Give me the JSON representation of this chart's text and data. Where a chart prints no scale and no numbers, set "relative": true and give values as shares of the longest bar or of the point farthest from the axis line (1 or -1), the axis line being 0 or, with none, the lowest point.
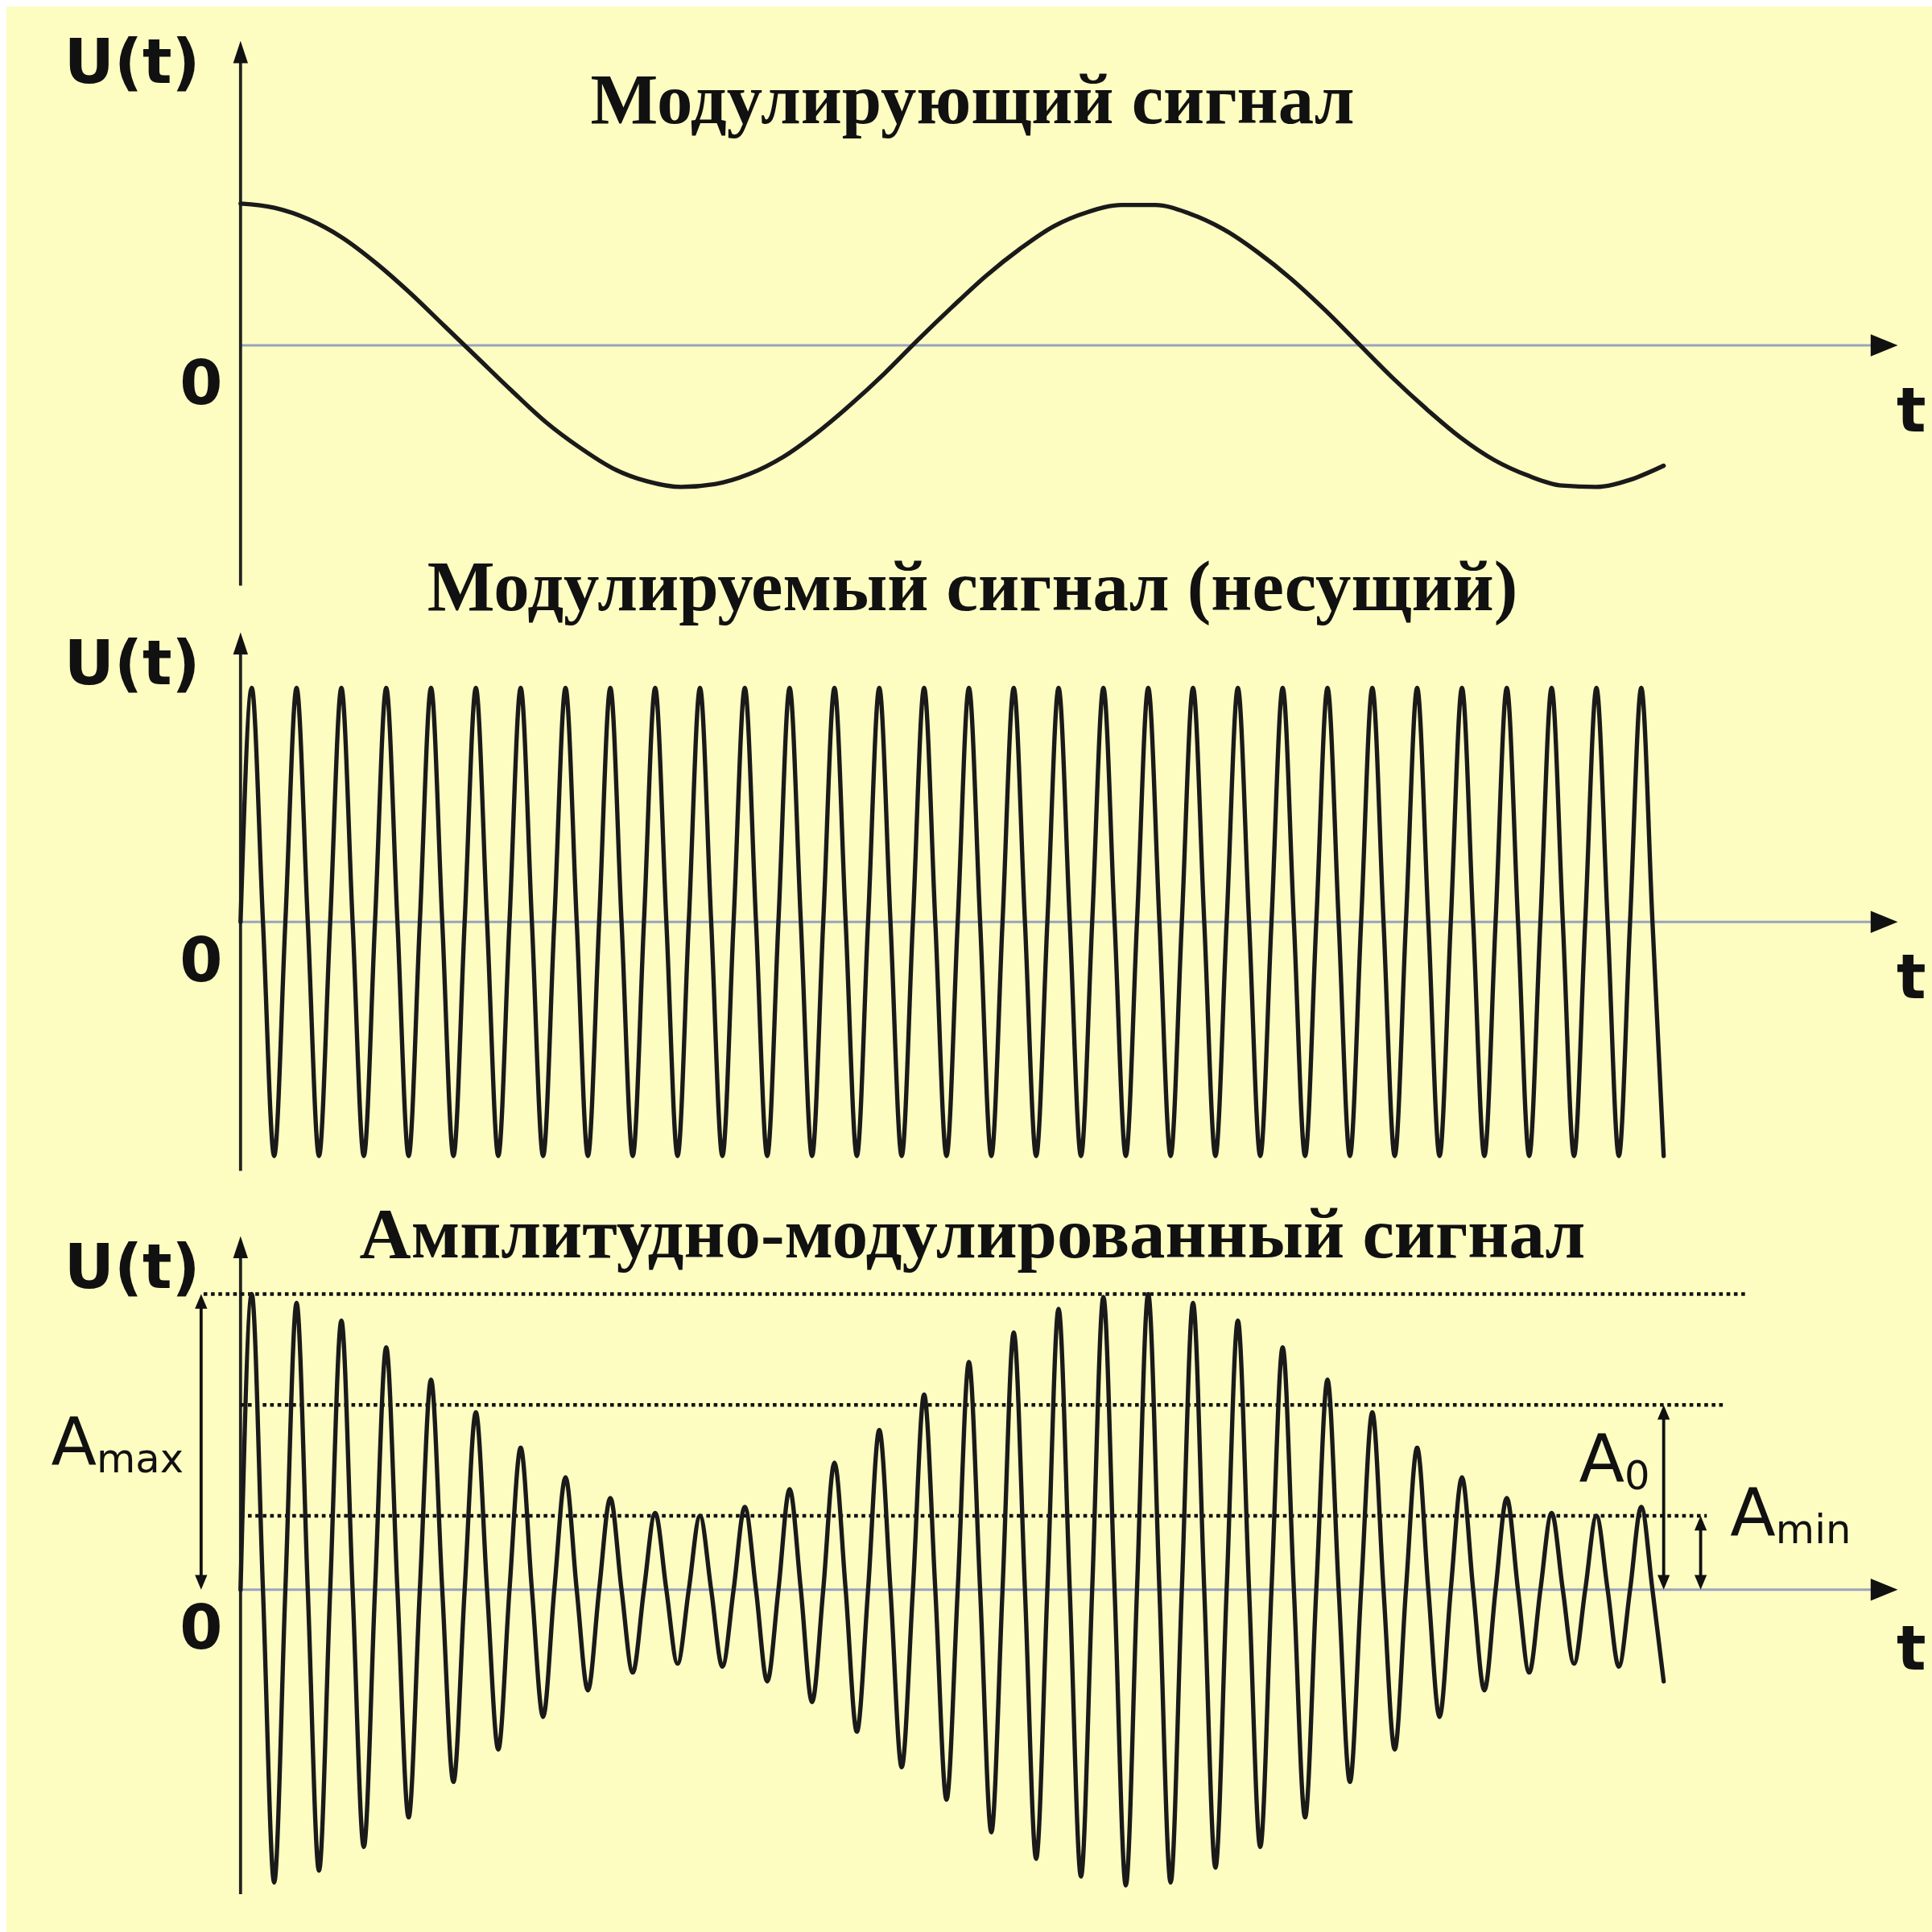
{
  "chart_data": [
    {
      "type": "line",
      "title": "Модулирующий сигнал",
      "xlabel": "t",
      "ylabel": "U(t)",
      "relative": true,
      "annotations": [
        "0"
      ],
      "categories": [
        null,
        null,
        null,
        null,
        null,
        null,
        null,
        null,
        null,
        null,
        null,
        null,
        null,
        null,
        null,
        null,
        null,
        null,
        null,
        null,
        null,
        null,
        null,
        null,
        null,
        null,
        null,
        null,
        null,
        null,
        null,
        null,
        null,
        null,
        null,
        null,
        null,
        null,
        null,
        null,
        null,
        null,
        null
      ],
      "series": [
        {
          "color": "#1a1a1a",
          "values": [
            1,
            0.97,
            0.89,
            0.76,
            0.58,
            0.37,
            0.14,
            -0.09,
            -0.32,
            -0.54,
            -0.72,
            -0.87,
            -0.96,
            -1,
            -0.98,
            -0.91,
            -0.79,
            -0.62,
            -0.42,
            -0.2,
            0.04,
            0.27,
            0.49,
            0.68,
            0.84,
            0.94,
            0.99,
            0.99,
            0.93,
            0.82,
            0.66,
            0.47,
            0.25,
            0.01,
            -0.23,
            -0.45,
            -0.65,
            -0.81,
            -0.92,
            -0.99,
            -1,
            -0.95,
            -0.85
          ]
        }
      ]
    },
    {
      "type": "line",
      "title": "Модулируемый сигнал (несущий)",
      "xlabel": "t",
      "ylabel": "U(t)",
      "relative": true,
      "annotations": [
        "0"
      ],
      "categories": [
        null,
        null,
        null,
        null,
        null,
        null,
        null,
        null,
        null,
        null,
        null,
        null,
        null,
        null,
        null,
        null,
        null,
        null,
        null,
        null,
        null,
        null,
        null,
        null,
        null,
        null,
        null,
        null,
        null,
        null,
        null,
        null,
        null,
        null,
        null,
        null,
        null,
        null,
        null,
        null,
        null,
        null,
        null,
        null,
        null,
        null,
        null,
        null,
        null,
        null,
        null,
        null,
        null,
        null,
        null,
        null,
        null,
        null,
        null,
        null,
        null,
        null,
        null,
        null,
        null,
        null,
        null,
        null,
        null,
        null,
        null,
        null,
        null,
        null,
        null,
        null,
        null,
        null,
        null,
        null,
        null,
        null,
        null,
        null,
        null,
        null,
        null,
        null,
        null,
        null,
        null,
        null,
        null,
        null,
        null,
        null,
        null,
        null,
        null,
        null,
        null,
        null,
        null,
        null,
        null,
        null,
        null,
        null,
        null,
        null,
        null,
        null,
        null,
        null,
        null,
        null,
        null,
        null,
        null,
        null,
        null,
        null,
        null,
        null,
        null,
        null,
        null,
        null
      ],
      "series": [
        {
          "color": "#1a1a1a",
          "values": [
            0,
            1,
            0,
            -1,
            0,
            1,
            0,
            -1,
            0,
            1,
            0,
            -1,
            0,
            1,
            0,
            -1,
            0,
            1,
            0,
            -1,
            0,
            1,
            0,
            -1,
            0,
            1,
            0,
            -1,
            0,
            1,
            0,
            -1,
            0,
            1,
            0,
            -1,
            0,
            1,
            0,
            -1,
            0,
            1,
            0,
            -1,
            0,
            1,
            0,
            -1,
            0,
            1,
            0,
            -1,
            0,
            1,
            0,
            -1,
            0,
            1,
            0,
            -1,
            0,
            1,
            0,
            -1,
            0,
            1,
            0,
            -1,
            0,
            1,
            0,
            -1,
            0,
            1,
            0,
            -1,
            0,
            1,
            0,
            -1,
            0,
            1,
            0,
            -1,
            0,
            1,
            0,
            -1,
            0,
            1,
            0,
            -1,
            0,
            1,
            0,
            -1,
            0,
            1,
            0,
            -1,
            0,
            1,
            0,
            -1,
            0,
            1,
            0,
            -1,
            0,
            1,
            0,
            -1,
            0,
            1,
            0,
            -1,
            0,
            1,
            0,
            -1,
            0,
            1,
            0,
            -1,
            0,
            1,
            0,
            -1
          ]
        }
      ]
    },
    {
      "type": "line",
      "title": "Амплитудно-модулированный сигнал",
      "xlabel": "t",
      "ylabel": "U(t)",
      "relative": true,
      "annotations": [
        "0"
      ],
      "categories": [
        null,
        null,
        null,
        null,
        null,
        null,
        null,
        null,
        null,
        null,
        null,
        null,
        null,
        null,
        null,
        null,
        null,
        null,
        null,
        null,
        null,
        null,
        null,
        null,
        null,
        null,
        null,
        null,
        null,
        null,
        null,
        null,
        null,
        null,
        null,
        null,
        null,
        null,
        null,
        null,
        null,
        null,
        null,
        null,
        null,
        null,
        null,
        null,
        null,
        null,
        null,
        null,
        null,
        null,
        null,
        null,
        null,
        null,
        null,
        null,
        null,
        null,
        null,
        null,
        null,
        null,
        null,
        null,
        null,
        null,
        null,
        null,
        null,
        null,
        null,
        null,
        null,
        null,
        null,
        null,
        null,
        null,
        null,
        null,
        null,
        null,
        null,
        null,
        null,
        null,
        null,
        null,
        null,
        null,
        null,
        null,
        null,
        null,
        null,
        null,
        null,
        null,
        null,
        null,
        null,
        null,
        null,
        null,
        null,
        null,
        null,
        null,
        null,
        null,
        null,
        null,
        null,
        null,
        null,
        null,
        null,
        null,
        null,
        null,
        null,
        null,
        null,
        null
      ],
      "series": [
        {
          "color": "#1a1a1a",
          "values": [
            0,
            1,
            0,
            -0.99,
            0,
            0.97,
            0,
            -0.95,
            0,
            0.91,
            0,
            -0.87,
            0,
            0.82,
            0,
            -0.77,
            0,
            0.71,
            0,
            -0.65,
            0,
            0.6,
            0,
            -0.54,
            0,
            0.48,
            0,
            -0.43,
            0,
            0.38,
            0,
            -0.34,
            0,
            0.31,
            0,
            -0.28,
            0,
            0.26,
            0,
            -0.25,
            0,
            0.25,
            0,
            -0.26,
            0,
            0.28,
            0,
            -0.31,
            0,
            0.34,
            0,
            -0.38,
            0,
            0.43,
            0,
            -0.48,
            0,
            0.54,
            0,
            -0.6,
            0,
            0.66,
            0,
            -0.71,
            0,
            0.77,
            0,
            -0.82,
            0,
            0.87,
            0,
            -0.91,
            0,
            0.95,
            0,
            -0.97,
            0,
            0.99,
            0,
            -1,
            0,
            1,
            0,
            -0.99,
            0,
            0.97,
            0,
            -0.94,
            0,
            0.91,
            0,
            -0.87,
            0,
            0.82,
            0,
            -0.77,
            0,
            0.71,
            0,
            -0.65,
            0,
            0.6,
            0,
            -0.54,
            0,
            0.48,
            0,
            -0.43,
            0,
            0.38,
            0,
            -0.34,
            0,
            0.31,
            0,
            -0.28,
            0,
            0.26,
            0,
            -0.25,
            0,
            0.25,
            0,
            -0.26,
            0,
            0.28,
            0,
            -0.31
          ]
        }
      ],
      "ref_lines": [
        {
          "axis": "y",
          "value": 1,
          "label": "A$_{max}$",
          "line_style": "dotted"
        },
        {
          "axis": "y",
          "value": 0.625,
          "label": "A$_{0}$",
          "line_style": "dotted"
        },
        {
          "axis": "y",
          "value": 0.25,
          "label": "A$_{min}$",
          "line_style": "dotted"
        }
      ]
    }
  ]
}
